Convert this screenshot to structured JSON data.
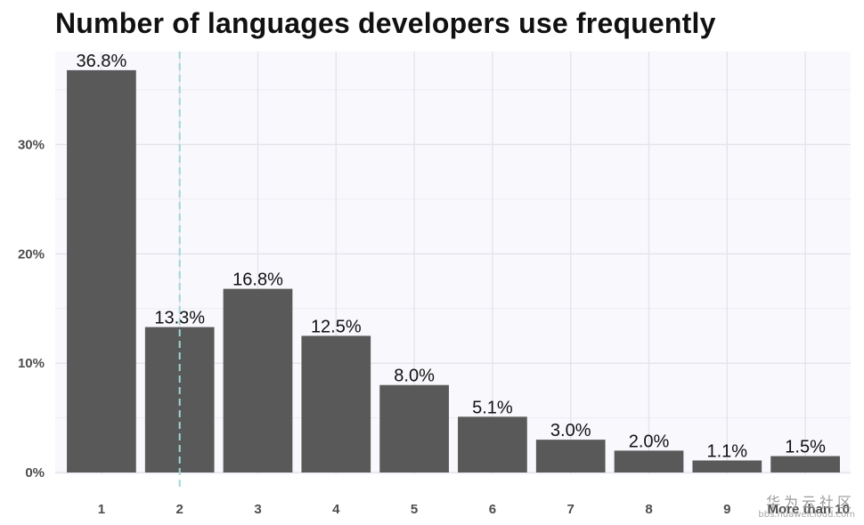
{
  "chart_data": {
    "type": "bar",
    "title": "Number of languages developers use frequently",
    "xlabel": "",
    "ylabel": "",
    "categories": [
      "1",
      "2",
      "3",
      "4",
      "5",
      "6",
      "7",
      "8",
      "9",
      "More than 10"
    ],
    "values": [
      36.8,
      13.3,
      16.8,
      12.5,
      8.0,
      5.1,
      3.0,
      2.0,
      1.1,
      1.5
    ],
    "data_labels": [
      "36.8%",
      "13.3%",
      "16.8%",
      "12.5%",
      "8.0%",
      "5.1%",
      "3.0%",
      "2.0%",
      "1.1%",
      "1.5%"
    ],
    "y_ticks": [
      0,
      10,
      20,
      30
    ],
    "y_tick_labels": [
      "0%",
      "10%",
      "20%",
      "30%"
    ],
    "ylim": [
      0,
      38.5
    ],
    "reference_line": {
      "x": 2,
      "style": "dashed",
      "color": "#9fd6d6"
    },
    "bar_color": "#595959",
    "background_color": "#f8f8fd",
    "grid": true,
    "legend": false
  },
  "watermark": {
    "line1": "华为云社区",
    "line2": "bbs.huaweicloud.com"
  }
}
